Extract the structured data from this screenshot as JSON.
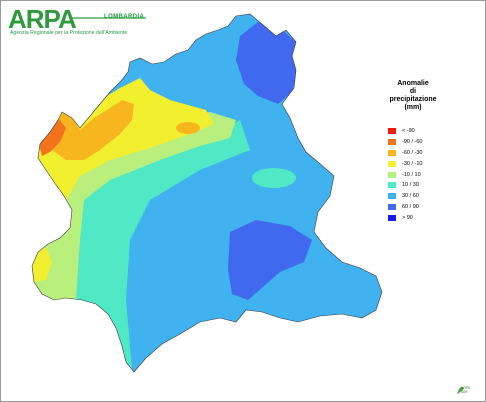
{
  "logo": {
    "wordmark": "ARPA",
    "region": "LOMBARDIA",
    "subtitle": "Agenzia Regionale per la Protezione dell'Ambiente"
  },
  "legend": {
    "title_lines": [
      "Anomalie",
      "di",
      "precipitazione",
      "(mm)"
    ],
    "classes": [
      {
        "label": "< -90",
        "color": "#ee1a0e"
      },
      {
        "label": "-90 / -60",
        "color": "#f4721c"
      },
      {
        "label": "-60 / -30",
        "color": "#f7b61d"
      },
      {
        "label": "-30 / -10",
        "color": "#f2f02e"
      },
      {
        "label": "-10 / 10",
        "color": "#b9ef7d"
      },
      {
        "label": "10 / 30",
        "color": "#4fe9c6"
      },
      {
        "label": "30 / 60",
        "color": "#40b2ef"
      },
      {
        "label": "60 / 90",
        "color": "#4169ef"
      },
      {
        "label": "> 90",
        "color": "#1a1aef"
      }
    ]
  },
  "footer_mark": {
    "line1": "ARPA",
    "line2": "SIM"
  }
}
